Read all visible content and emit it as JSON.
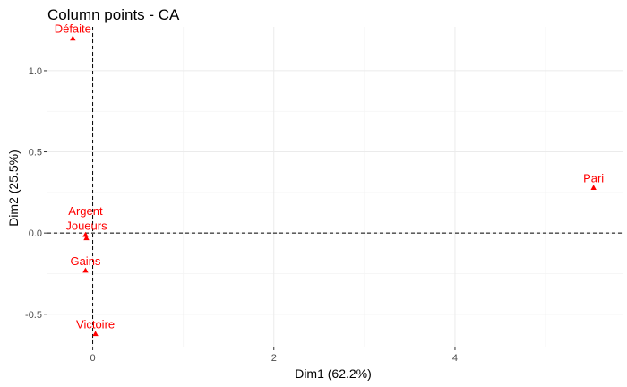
{
  "chart_data": {
    "type": "scatter",
    "title": "Column points - CA",
    "xlabel": "Dim1 (62.2%)",
    "ylabel": "Dim2 (25.5%)",
    "xlim": [
      -0.5,
      5.85
    ],
    "ylim": [
      -0.7,
      1.27
    ],
    "x_ticks": [
      0,
      2,
      4
    ],
    "y_ticks": [
      -0.5,
      0.0,
      0.5,
      1.0
    ],
    "x_tick_labels": [
      "0",
      "2",
      "4"
    ],
    "y_tick_labels": [
      "-0.5",
      "0.0",
      "0.5",
      "1.0"
    ],
    "grid": true,
    "reference_lines": {
      "x": 0,
      "y": 0
    },
    "marker": "triangle",
    "point_color": "#ff0000",
    "points": [
      {
        "label": "Défaite",
        "x": -0.22,
        "y": 1.2
      },
      {
        "label": "Pari",
        "x": 5.53,
        "y": 0.28
      },
      {
        "label": "Argent",
        "x": -0.08,
        "y": -0.01
      },
      {
        "label": "Joueurs",
        "x": -0.07,
        "y": -0.03
      },
      {
        "label": "Gains",
        "x": -0.08,
        "y": -0.23
      },
      {
        "label": "Victoire",
        "x": 0.03,
        "y": -0.62
      }
    ]
  }
}
